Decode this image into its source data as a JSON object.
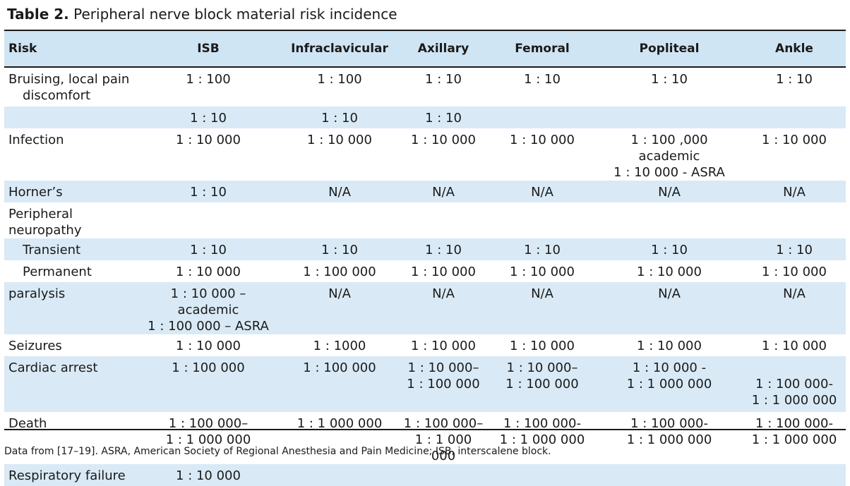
{
  "title": {
    "label": "Table 2.",
    "text": "Peripheral nerve block material risk incidence"
  },
  "columns": [
    "Risk",
    "ISB",
    "Infraclavicular",
    "Axillary",
    "Femoral",
    "Popliteal",
    "Ankle"
  ],
  "rows": [
    {
      "risk": [
        "Bruising, local pain",
        "discomfort"
      ],
      "cells": [
        [
          "1 : 100"
        ],
        [
          "1 : 100"
        ],
        [
          "1 : 10"
        ],
        [
          "1 : 10"
        ],
        [
          "1 : 10"
        ],
        [
          "1 : 10"
        ]
      ]
    },
    {
      "risk": [
        ""
      ],
      "cells": [
        [
          "1 : 10"
        ],
        [
          "1 : 10"
        ],
        [
          "1 : 10"
        ],
        [
          ""
        ],
        [
          ""
        ],
        [
          ""
        ]
      ]
    },
    {
      "risk": [
        "Infection"
      ],
      "cells": [
        [
          "1 : 10 000"
        ],
        [
          "1 : 10 000"
        ],
        [
          "1 : 10 000"
        ],
        [
          "1 : 10 000"
        ],
        [
          "1 : 100 ,000 academic",
          "1 : 10 000 - ASRA"
        ],
        [
          "1 : 10 000"
        ]
      ]
    },
    {
      "risk": [
        "Horner’s"
      ],
      "cells": [
        [
          "1 : 10"
        ],
        [
          "N/A"
        ],
        [
          "N/A"
        ],
        [
          "N/A"
        ],
        [
          "N/A"
        ],
        [
          "N/A"
        ]
      ]
    },
    {
      "risk": [
        "Peripheral neuropathy"
      ],
      "cells": [
        [
          ""
        ],
        [
          ""
        ],
        [
          ""
        ],
        [
          ""
        ],
        [
          ""
        ],
        [
          ""
        ]
      ]
    },
    {
      "risk": [
        "Transient"
      ],
      "indent": true,
      "cells": [
        [
          "1 : 10"
        ],
        [
          "1 : 10"
        ],
        [
          "1 : 10"
        ],
        [
          "1 : 10"
        ],
        [
          "1 : 10"
        ],
        [
          "1 : 10"
        ]
      ]
    },
    {
      "risk": [
        "Permanent"
      ],
      "indent": true,
      "cells": [
        [
          "1 : 10 000"
        ],
        [
          "1 : 100 000"
        ],
        [
          "1 : 10 000"
        ],
        [
          "1 : 10 000"
        ],
        [
          "1 : 10 000"
        ],
        [
          "1 : 10 000"
        ]
      ]
    },
    {
      "risk": [
        "paralysis"
      ],
      "cells": [
        [
          "1 : 10 000 – academic",
          "1 : 100 000 – ASRA"
        ],
        [
          "N/A"
        ],
        [
          "N/A"
        ],
        [
          "N/A"
        ],
        [
          "N/A"
        ],
        [
          "N/A"
        ]
      ]
    },
    {
      "risk": [
        "Seizures"
      ],
      "cells": [
        [
          "1 : 10 000"
        ],
        [
          "1 : 1000"
        ],
        [
          "1 : 10 000"
        ],
        [
          "1 : 10 000"
        ],
        [
          "1 : 10 000"
        ],
        [
          "1 : 10 000"
        ]
      ]
    },
    {
      "risk": [
        "Cardiac arrest"
      ],
      "cells": [
        [
          "1 : 100 000"
        ],
        [
          "1 : 100 000"
        ],
        [
          "1 : 10 000–",
          "1 : 100 000"
        ],
        [
          "1 : 10 000–",
          "1 : 100 000"
        ],
        [
          "1 : 10 000 -",
          "1 : 1 000 000"
        ],
        [
          "",
          "1 : 100 000-",
          "1 : 1 000 000"
        ]
      ]
    },
    {
      "risk": [
        "Death"
      ],
      "cells": [
        [
          "1 : 100 000–",
          "1 : 1 000 000"
        ],
        [
          "1 : 1 000 000"
        ],
        [
          "1 : 100 000–",
          "1 : 1 000 000"
        ],
        [
          "1 : 100 000-",
          "1 : 1 000 000"
        ],
        [
          "1 : 100 000-",
          "1 : 1 000 000"
        ],
        [
          "1 : 100 000-",
          "1 : 1 000 000"
        ]
      ]
    },
    {
      "risk": [
        "Respiratory failure"
      ],
      "cells": [
        [
          "1 : 10 000"
        ],
        [
          ""
        ],
        [
          ""
        ],
        [
          ""
        ],
        [
          ""
        ],
        [
          ""
        ]
      ]
    }
  ],
  "footnote": "Data from [17–19]. ASRA, American Society of Regional Anesthesia and Pain Medicine; ISB, interscalene block.",
  "colors": {
    "header_bg": "#cfe5f3",
    "stripe_bg": "#d9eaf6",
    "rule": "#1a1a1a"
  }
}
